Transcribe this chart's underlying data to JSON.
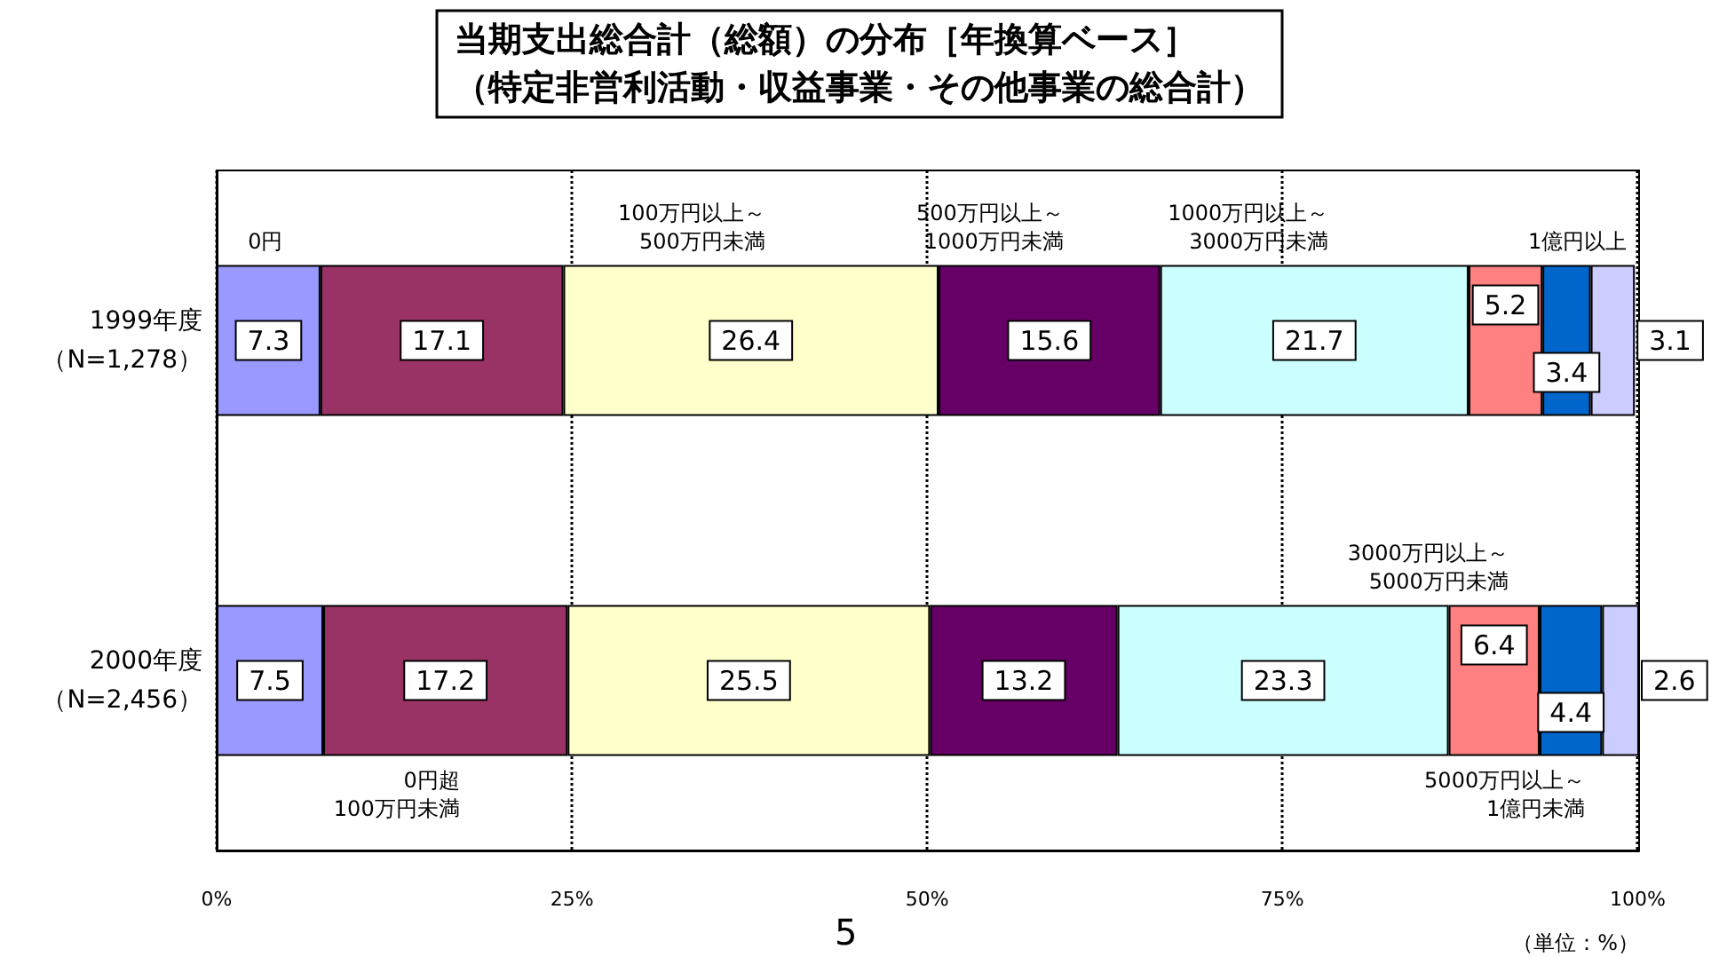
{
  "chart_data": {
    "type": "bar",
    "orientation": "horizontal",
    "stacked": true,
    "title": "当期支出総合計（総額）の分布［年換算ベース］",
    "subtitle": "（特定非営利活動・収益事業・その他事業の総合計）",
    "categories": [
      "1999年度（N=1,278）",
      "2000年度（N=2,456）"
    ],
    "series": [
      {
        "name": "0円",
        "color": "#9999ff",
        "values": [
          7.3,
          7.5
        ]
      },
      {
        "name": "0円超\n100万円未満",
        "color": "#993366",
        "values": [
          17.1,
          17.2
        ]
      },
      {
        "name": "100万円以上～\n500万円未満",
        "color": "#ffffcc",
        "values": [
          26.4,
          25.5
        ]
      },
      {
        "name": "500万円以上～\n1000万円未満",
        "color": "#660066",
        "values": [
          15.6,
          13.2
        ]
      },
      {
        "name": "1000万円以上～\n3000万円未満",
        "color": "#ccffff",
        "values": [
          21.7,
          23.3
        ]
      },
      {
        "name": "3000万円以上～\n5000万円未満",
        "color": "#ff8080",
        "values": [
          5.2,
          6.4
        ]
      },
      {
        "name": "5000万円以上～\n1億円未満",
        "color": "#0066cc",
        "values": [
          3.4,
          4.4
        ]
      },
      {
        "name": "1億円以上",
        "color": "#ccccff",
        "values": [
          3.1,
          2.6
        ]
      }
    ],
    "xlim": [
      0,
      100.1
    ],
    "xticks": [
      {
        "value": 0,
        "label": "0%"
      },
      {
        "value": 25,
        "label": "25%"
      },
      {
        "value": 50,
        "label": "50%"
      },
      {
        "value": 75,
        "label": "75%"
      },
      {
        "value": 100,
        "label": "100%"
      }
    ],
    "grid": "x",
    "legend": false,
    "data_labels": true,
    "annotations": [
      "（単位：%）",
      "5"
    ]
  }
}
